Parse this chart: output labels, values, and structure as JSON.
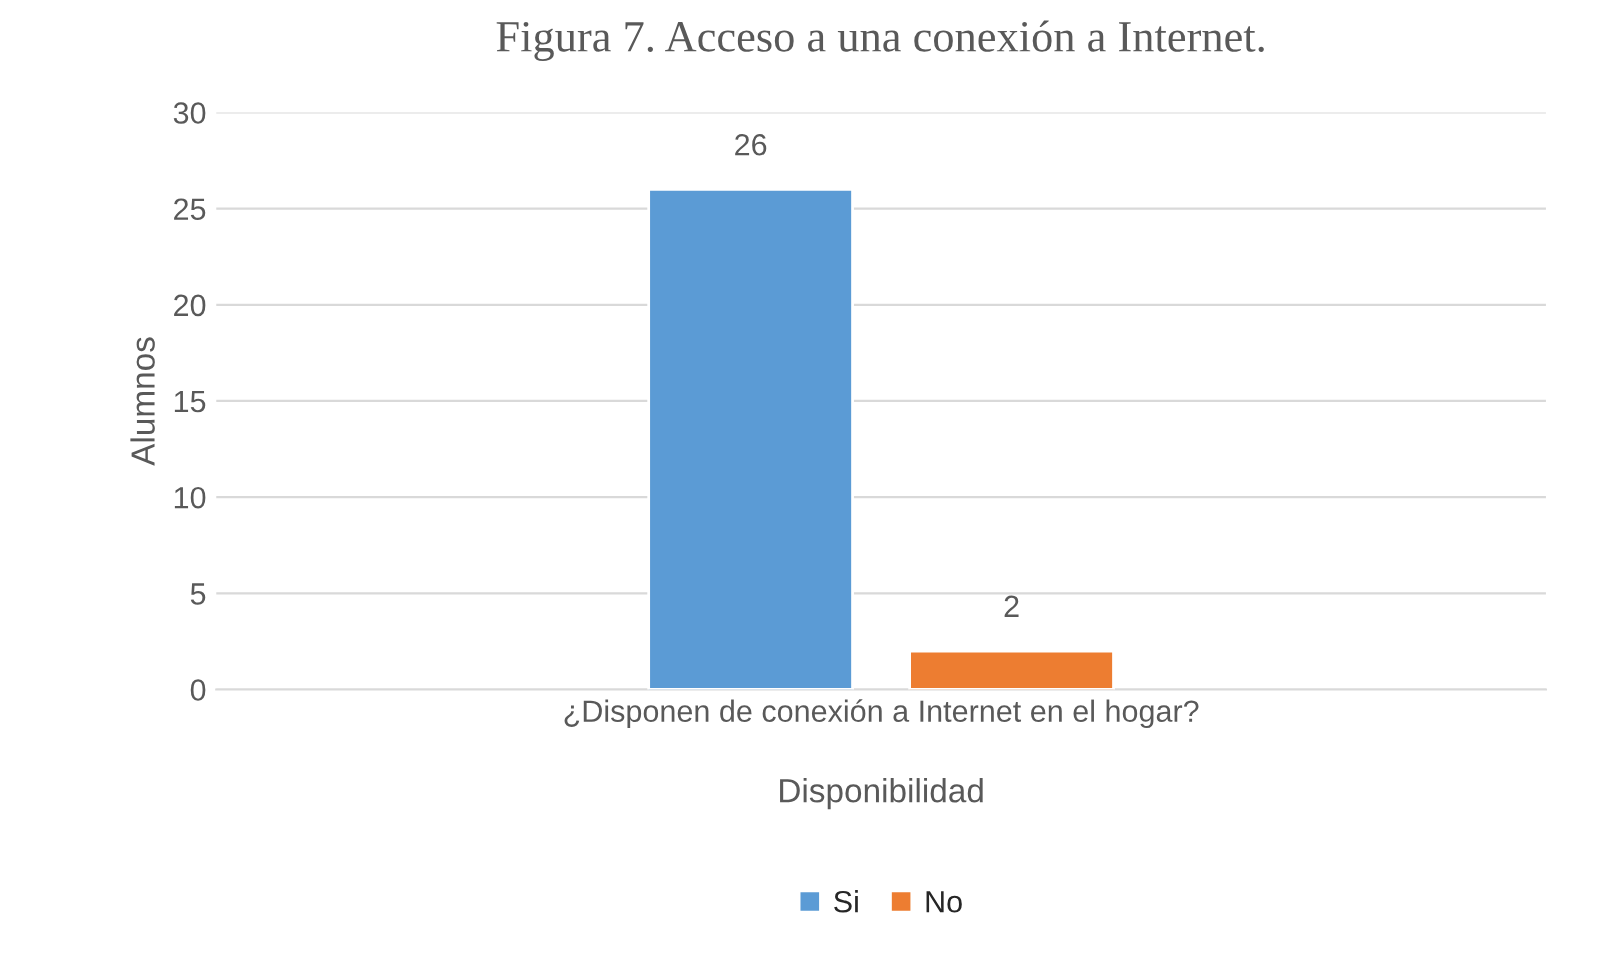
{
  "chart_data": {
    "type": "bar",
    "title": "Figura 7. Acceso a una conexión a Internet.",
    "xlabel": "Disponibilidad",
    "ylabel": "Alumnos",
    "categories": [
      "¿Disponen de conexión a Internet en el hogar?"
    ],
    "series": [
      {
        "name": "Si",
        "color": "#5b9bd5",
        "values": [
          26
        ]
      },
      {
        "name": "No",
        "color": "#ed7d31",
        "values": [
          2
        ]
      }
    ],
    "ylim": [
      0,
      30
    ],
    "yticks": [
      0,
      5,
      10,
      15,
      20,
      25,
      30
    ],
    "grid": "y",
    "legend": "bottom",
    "data_labels": true
  }
}
